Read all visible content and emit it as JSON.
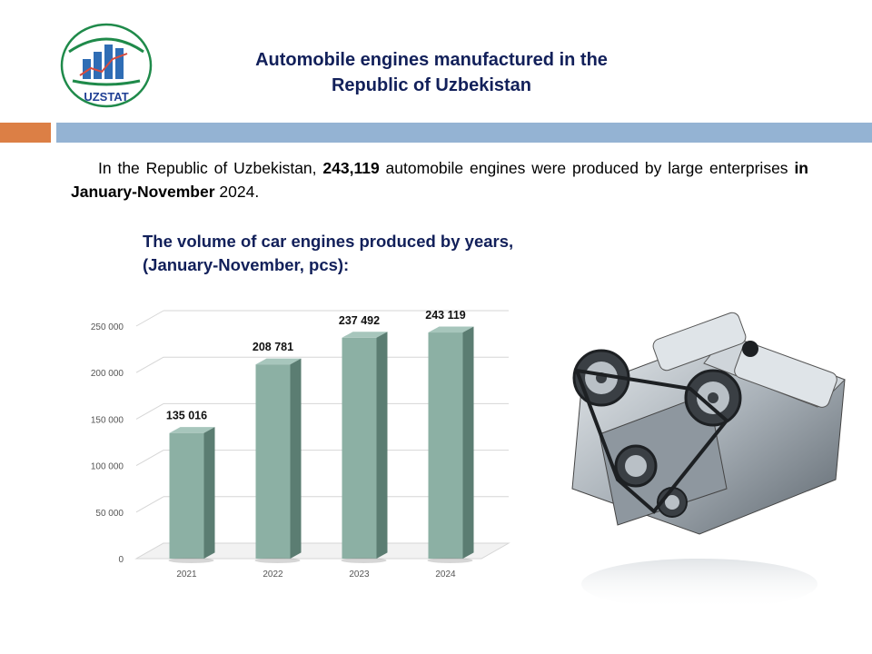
{
  "logo": {
    "text": "UZSTAT",
    "colors": {
      "ring": "#1f8a4a",
      "text": "#1f3f94",
      "accent": "#d94b3d"
    }
  },
  "header": {
    "title_line1": "Automobile engines manufactured in the",
    "title_line2": "Republic of Uzbekistan"
  },
  "intro": {
    "part1": "In the Republic of Uzbekistan, ",
    "bold1": "243,119",
    "part2": " automobile engines were produced by large enterprises ",
    "bold2": "in January-November",
    "part3": " 2024."
  },
  "chart_title": {
    "line1": "The volume of car engines produced by years,",
    "line2": "(January-November, pcs):"
  },
  "engine_image": {
    "icon": "car-engine-icon"
  },
  "colors": {
    "title": "#12205a",
    "band_orange": "#dc7f45",
    "band_blue": "#94b3d3",
    "bar_front": "#8cb0a4",
    "bar_side": "#5b7d72",
    "bar_top": "#a7c6bc"
  },
  "chart_data": {
    "type": "bar",
    "categories": [
      "2021",
      "2022",
      "2023",
      "2024"
    ],
    "values": [
      135016,
      208781,
      237492,
      243119
    ],
    "data_labels": [
      "135 016",
      "208 781",
      "237 492",
      "243 119"
    ],
    "title": "The volume of car engines produced by years, (January-November, pcs):",
    "xlabel": "",
    "ylabel": "",
    "ylim": [
      0,
      250000
    ],
    "yticks": [
      0,
      50000,
      100000,
      150000,
      200000,
      250000
    ],
    "ytick_labels": [
      "0",
      "50 000",
      "100 000",
      "150 000",
      "200 000",
      "250 000"
    ],
    "grid": true,
    "legend": "none",
    "style": "3d-bar"
  }
}
